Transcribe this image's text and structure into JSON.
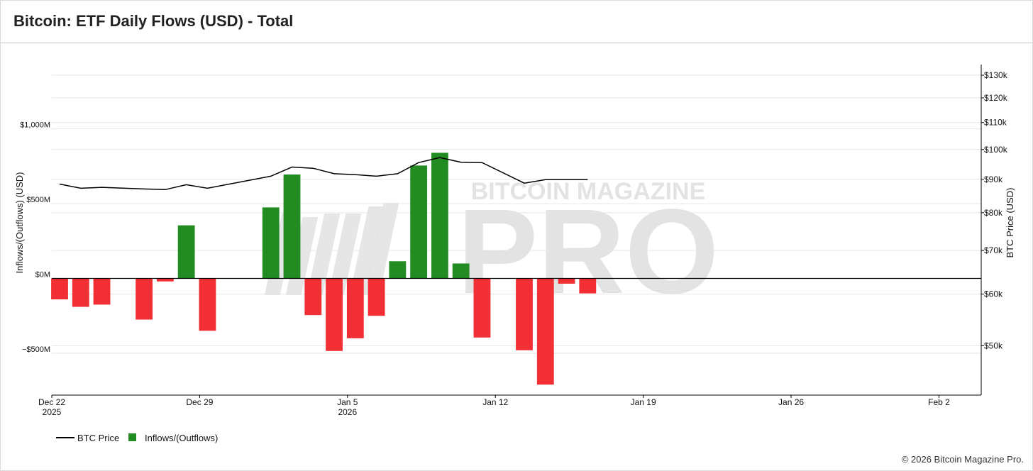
{
  "page": {
    "title": "Bitcoin: ETF Daily Flows (USD) - Total",
    "copyright": "© 2026 Bitcoin Magazine Pro."
  },
  "watermark": {
    "top": "BITCOIN MAGAZINE",
    "main": "PRO"
  },
  "colors": {
    "inflow": "#228b22",
    "outflow": "#f22f35",
    "price_line": "#000000",
    "grid": "#e6e6e6",
    "watermark": "#e3e3e3"
  },
  "chart_data": {
    "type": "bar",
    "title": "Bitcoin: ETF Daily Flows (USD) - Total",
    "ylabel": "Inflows/(Outflows) (USD)",
    "y2label": "BTC Price (USD)",
    "ylim": [
      -780,
      1430
    ],
    "y2scale": "log",
    "y2lim": [
      42000,
      135000
    ],
    "y_ticks": [
      {
        "value": 1000,
        "label": "$1,000M"
      },
      {
        "value": 500,
        "label": "$500M"
      },
      {
        "value": 0,
        "label": "$0M"
      },
      {
        "value": -500,
        "label": "−$500M"
      }
    ],
    "y2_ticks": [
      {
        "value": 130000,
        "label": "$130k"
      },
      {
        "value": 120000,
        "label": "$120k"
      },
      {
        "value": 110000,
        "label": "$110k"
      },
      {
        "value": 100000,
        "label": "$100k"
      },
      {
        "value": 90000,
        "label": "$90k"
      },
      {
        "value": 80000,
        "label": "$80k"
      },
      {
        "value": 70000,
        "label": "$70k"
      },
      {
        "value": 60000,
        "label": "$60k"
      },
      {
        "value": 50000,
        "label": "$50k"
      }
    ],
    "x_range_days": [
      0,
      44
    ],
    "x_ticks": [
      {
        "day": 0,
        "label": "Dec 22",
        "sublabel": "2025"
      },
      {
        "day": 7,
        "label": "Dec 29",
        "sublabel": ""
      },
      {
        "day": 14,
        "label": "Jan 5",
        "sublabel": "2026"
      },
      {
        "day": 21,
        "label": "Jan 12",
        "sublabel": ""
      },
      {
        "day": 28,
        "label": "Jan 19",
        "sublabel": ""
      },
      {
        "day": 35,
        "label": "Jan 26",
        "sublabel": ""
      },
      {
        "day": 42,
        "label": "Feb 2",
        "sublabel": ""
      }
    ],
    "legend": [
      {
        "label": "BTC Price",
        "kind": "line"
      },
      {
        "label": "Inflows/(Outflows)",
        "kind": "square"
      }
    ],
    "flows": [
      {
        "day": 0,
        "value": -140
      },
      {
        "day": 1,
        "value": -190
      },
      {
        "day": 2,
        "value": -175
      },
      {
        "day": 4,
        "value": -275
      },
      {
        "day": 5,
        "value": -20
      },
      {
        "day": 6,
        "value": 355
      },
      {
        "day": 7,
        "value": -350
      },
      {
        "day": 10,
        "value": 475
      },
      {
        "day": 11,
        "value": 695
      },
      {
        "day": 12,
        "value": -245
      },
      {
        "day": 13,
        "value": -485
      },
      {
        "day": 14,
        "value": -400
      },
      {
        "day": 15,
        "value": -250
      },
      {
        "day": 16,
        "value": 115
      },
      {
        "day": 17,
        "value": 755
      },
      {
        "day": 18,
        "value": 840
      },
      {
        "day": 19,
        "value": 100
      },
      {
        "day": 20,
        "value": -395
      },
      {
        "day": 22,
        "value": -480
      },
      {
        "day": 23,
        "value": -710
      },
      {
        "day": 24,
        "value": -35
      },
      {
        "day": 25,
        "value": -100
      }
    ],
    "btc_price": [
      {
        "day": 0,
        "value": 88500
      },
      {
        "day": 1,
        "value": 87200
      },
      {
        "day": 2,
        "value": 87500
      },
      {
        "day": 4,
        "value": 87000
      },
      {
        "day": 5,
        "value": 86800
      },
      {
        "day": 6,
        "value": 88300
      },
      {
        "day": 7,
        "value": 87200
      },
      {
        "day": 10,
        "value": 91000
      },
      {
        "day": 11,
        "value": 94000
      },
      {
        "day": 12,
        "value": 93600
      },
      {
        "day": 13,
        "value": 91800
      },
      {
        "day": 14,
        "value": 91500
      },
      {
        "day": 15,
        "value": 91000
      },
      {
        "day": 16,
        "value": 91800
      },
      {
        "day": 17,
        "value": 95500
      },
      {
        "day": 18,
        "value": 97200
      },
      {
        "day": 19,
        "value": 95600
      },
      {
        "day": 20,
        "value": 95500
      },
      {
        "day": 22,
        "value": 88800
      },
      {
        "day": 23,
        "value": 89900
      },
      {
        "day": 24,
        "value": 89900
      },
      {
        "day": 25,
        "value": 89900
      }
    ]
  }
}
